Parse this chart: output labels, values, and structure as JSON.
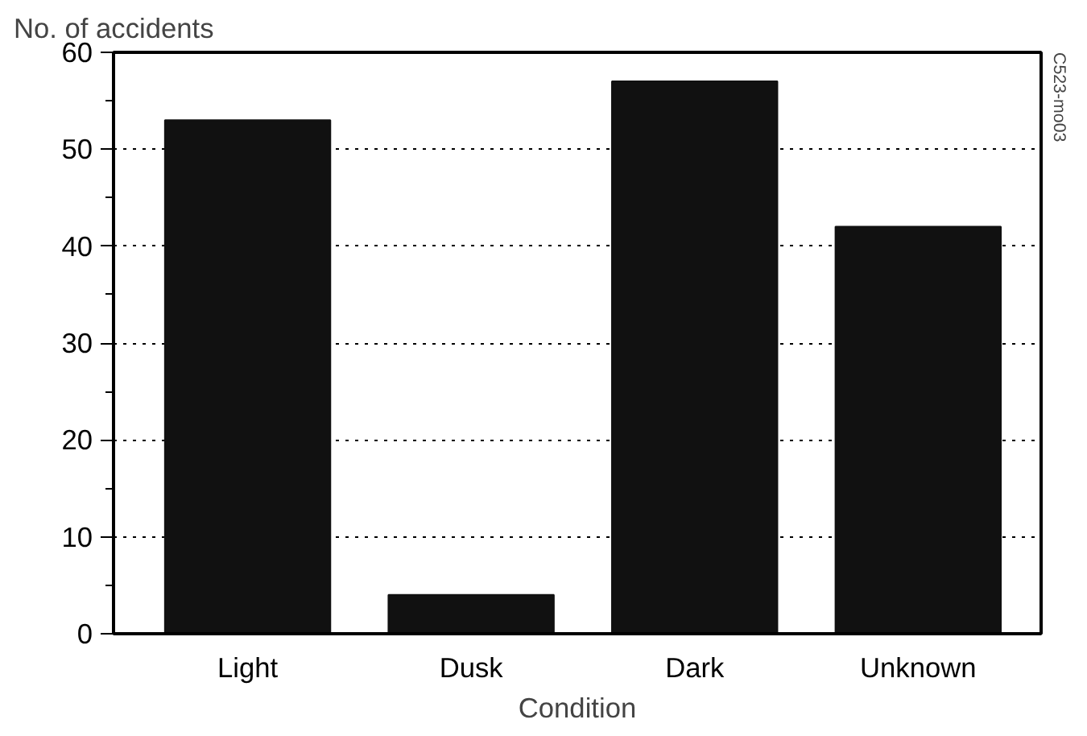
{
  "chart_data": {
    "type": "bar",
    "ylabel": "No. of accidents",
    "xlabel": "Condition",
    "categories": [
      "Light",
      "Dusk",
      "Dark",
      "Unknown"
    ],
    "values": [
      53,
      4,
      57,
      42
    ],
    "color": "#111111",
    "ylim": [
      0,
      60
    ],
    "yticks": [
      0,
      10,
      20,
      30,
      40,
      50,
      60
    ],
    "grid": "y",
    "line_style": "dotted",
    "annotations": [
      "C523-mo03"
    ]
  }
}
